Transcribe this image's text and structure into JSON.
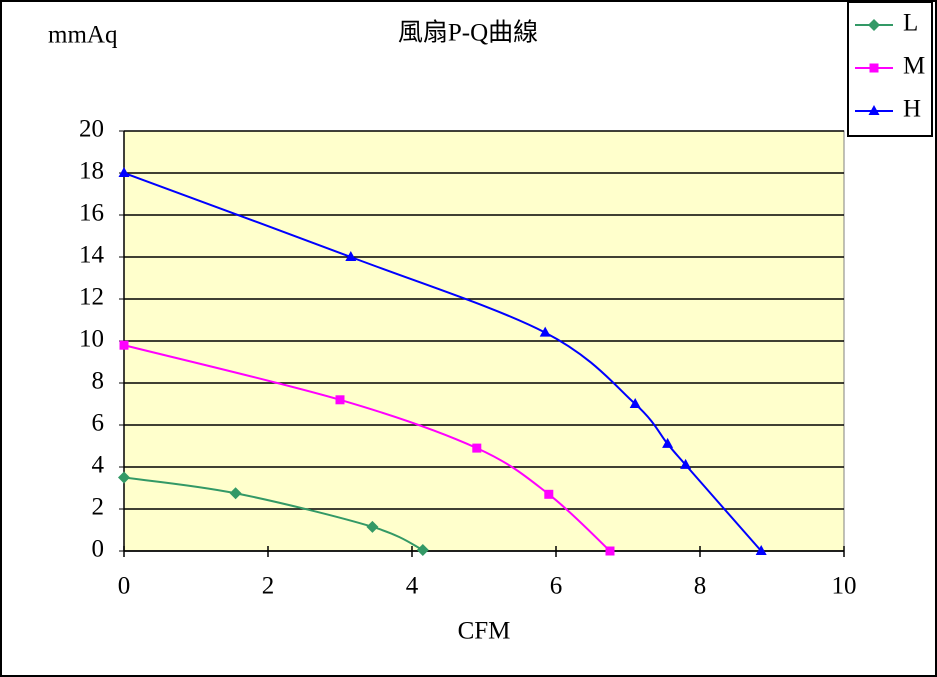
{
  "chart_data": {
    "type": "line",
    "title": "風扇P-Q曲線",
    "y_label": "mmAq",
    "x_label": "CFM",
    "xlim": [
      0,
      10
    ],
    "xticks": [
      0,
      2,
      4,
      6,
      8,
      10
    ],
    "ylim": [
      0,
      20
    ],
    "yticks": [
      0,
      2,
      4,
      6,
      8,
      10,
      12,
      14,
      16,
      18,
      20
    ],
    "grid": true,
    "smooth": true,
    "legend": "top-right",
    "series": [
      {
        "name": "L",
        "color": "#339966",
        "marker": "diamond",
        "x": [
          0,
          1.55,
          3.45,
          4.15
        ],
        "values": [
          3.5,
          2.75,
          1.15,
          0.05
        ]
      },
      {
        "name": "M",
        "color": "#ff00ff",
        "marker": "square",
        "x": [
          0,
          3.0,
          4.9,
          5.9,
          6.75
        ],
        "values": [
          9.8,
          7.2,
          4.9,
          2.7,
          0
        ]
      },
      {
        "name": "H",
        "color": "#0000ff",
        "marker": "triangle",
        "x": [
          0,
          3.15,
          5.85,
          7.1,
          7.55,
          7.8,
          8.85
        ],
        "values": [
          18,
          14,
          10.4,
          7,
          5.1,
          4.1,
          0
        ]
      }
    ]
  }
}
